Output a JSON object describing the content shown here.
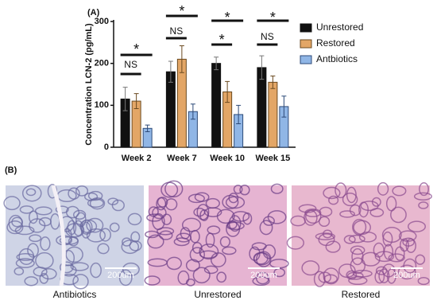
{
  "chart_data": {
    "type": "bar",
    "panel_label": "(A)",
    "y_label": "Concentration LCN-2 (pg/mL)",
    "categories": [
      "Week 2",
      "Week 7",
      "Week 10",
      "Week 15"
    ],
    "series": [
      {
        "name": "Unrestored",
        "color": "#111111",
        "values": [
          115,
          180,
          200,
          190
        ],
        "errors": [
          28,
          25,
          15,
          28
        ]
      },
      {
        "name": "Restored",
        "color": "#e3a666",
        "values": [
          110,
          210,
          132,
          155
        ],
        "errors": [
          18,
          32,
          25,
          15
        ]
      },
      {
        "name": "Antbiotics",
        "color": "#90b6e6",
        "values": [
          45,
          85,
          78,
          97
        ],
        "errors": [
          8,
          18,
          22,
          25
        ]
      }
    ],
    "ylim": [
      0,
      300
    ],
    "yticks": [
      0,
      100,
      200,
      300
    ],
    "annotations": [
      "NS",
      "*",
      "NS",
      "*",
      "*",
      "*",
      "NS",
      "*"
    ]
  },
  "images": {
    "panel_label": "(B)",
    "captions": [
      "Antibiotics",
      "Unrestored",
      "Restored"
    ],
    "scale_bars": [
      "200um",
      "200um",
      "200um"
    ]
  }
}
